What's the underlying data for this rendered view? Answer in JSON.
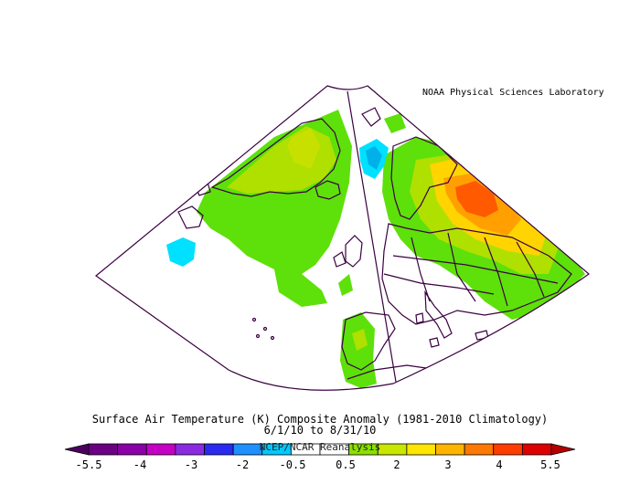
{
  "credit": "NOAA Physical Sciences Laboratory",
  "title": "Surface Air Temperature (K) Composite Anomaly (1981-2010 Climatology)",
  "date_range": "6/1/10  to 8/31/10",
  "source": "NCEP/NCAR Reanalysis",
  "colorbar": {
    "ticks": [
      "-5.5",
      "-4",
      "-3",
      "-2",
      "-0.5",
      "0.5",
      "2",
      "3",
      "4",
      "5.5"
    ],
    "colors": [
      "#6b0083",
      "#8a00a6",
      "#c400c4",
      "#8a2be2",
      "#2a2af0",
      "#1e90ff",
      "#00c8ff",
      "#ffffff",
      "#ffffff",
      "#8ce000",
      "#c8e600",
      "#ffe600",
      "#ffb400",
      "#ff7800",
      "#ff3c00",
      "#dc0000"
    ]
  },
  "map": {
    "projection": "conic",
    "region": "North Atlantic / Europe",
    "anomaly_colors": {
      "weak_warm": "#5ee00a",
      "warm": "#b0e000",
      "warmer": "#ffd400",
      "hot": "#ffa000",
      "hotter": "#ff5a00",
      "weak_cold": "#00e0ff",
      "cold": "#00b0e8"
    }
  }
}
